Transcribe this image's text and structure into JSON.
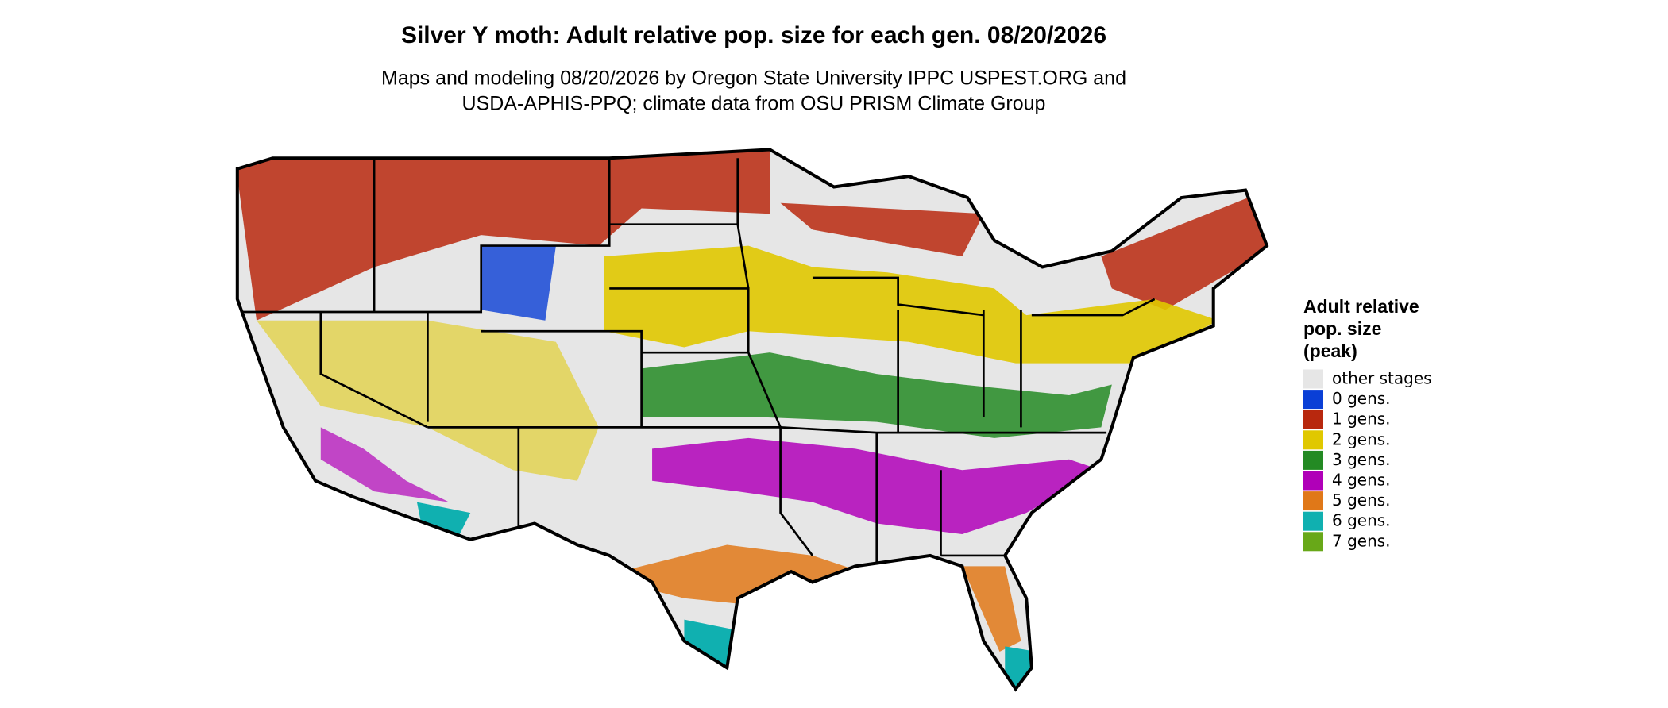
{
  "title": "Silver Y moth: Adult relative pop. size for each gen. 08/20/2026",
  "subtitle": [
    "Maps and modeling 08/20/2026 by Oregon State University IPPC USPEST.ORG and",
    "USDA-APHIS-PPQ; climate data from OSU PRISM Climate Group"
  ],
  "legend": {
    "title": [
      "Adult relative",
      "pop. size",
      "(peak)"
    ],
    "items": [
      {
        "label": "other stages",
        "color": "#e6e6e6"
      },
      {
        "label": "0 gens.",
        "color": "#0a3fd6"
      },
      {
        "label": "1 gens.",
        "color": "#b8280e"
      },
      {
        "label": "2 gens.",
        "color": "#e0c800"
      },
      {
        "label": "3 gens.",
        "color": "#238a23"
      },
      {
        "label": "4 gens.",
        "color": "#b000b8"
      },
      {
        "label": "5 gens.",
        "color": "#e07818"
      },
      {
        "label": "6 gens.",
        "color": "#10b0b0"
      },
      {
        "label": "7 gens.",
        "color": "#68a818"
      }
    ]
  }
}
